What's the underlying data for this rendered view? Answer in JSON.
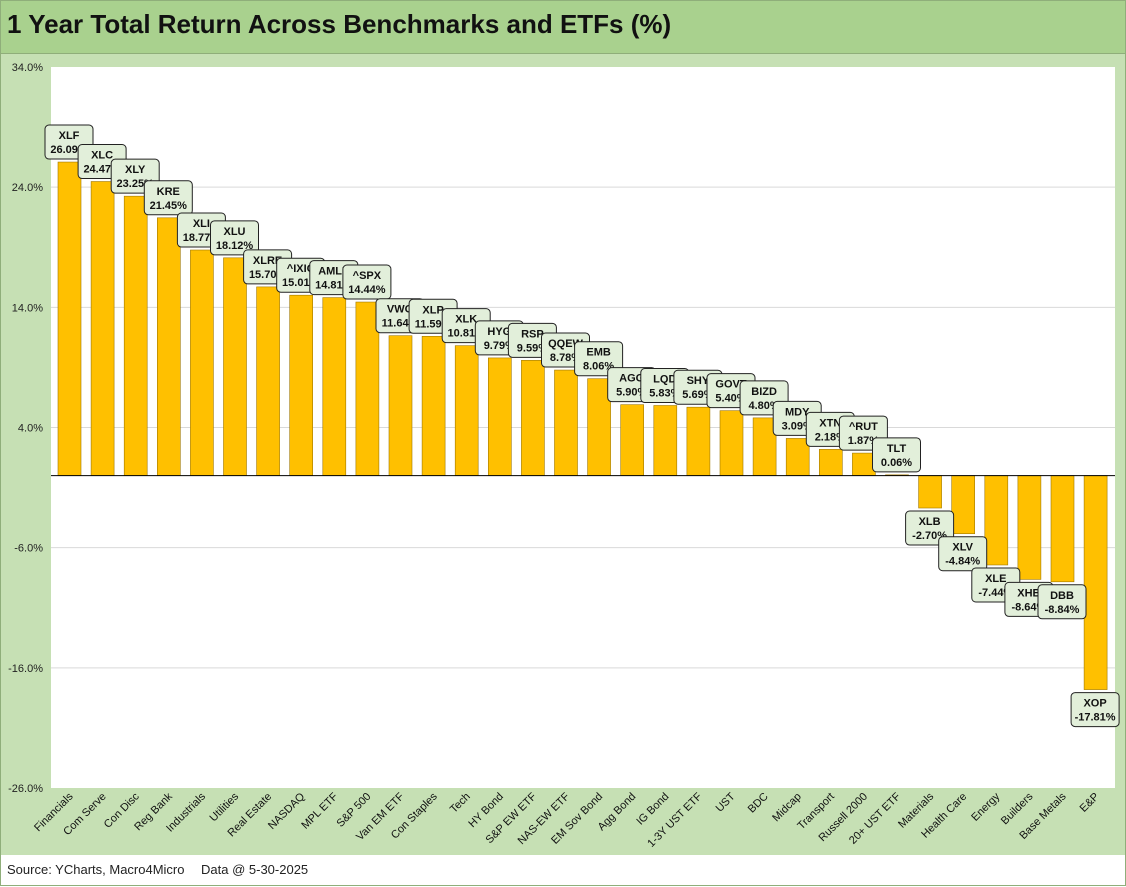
{
  "chart_data": {
    "type": "bar",
    "title": "1 Year Total Return Across Benchmarks and ETFs (%)",
    "xlabel": "",
    "ylabel": "",
    "ylim": [
      -26,
      34
    ],
    "yticks": [
      "34.0%",
      "24.0%",
      "14.0%",
      "4.0%",
      "-6.0%",
      "-16.0%",
      "-26.0%"
    ],
    "ytick_values": [
      34,
      24,
      14,
      4,
      -6,
      -16,
      -26
    ],
    "grid": true,
    "legend": "none",
    "categories": [
      "Financials",
      "Com Serve",
      "Con Disc",
      "Reg Bank",
      "Industrials",
      "Utilities",
      "Real Estate",
      "NASDAQ",
      "MPL ETF",
      "S&P 500",
      "Van EM ETF",
      "Con Staples",
      "Tech",
      "HY Bond",
      "S&P EW ETF",
      "NAS-EW ETF",
      "EM Sov Bond",
      "Agg Bond",
      "IG Bond",
      "1-3Y UST ETF",
      "UST",
      "BDC",
      "Midcap",
      "Transport",
      "Russell 2000",
      "20+ UST ETF",
      "Materials",
      "Health Care",
      "Energy",
      "Builders",
      "Base Metals",
      "E&P"
    ],
    "tickers": [
      "XLF",
      "XLC",
      "XLY",
      "KRE",
      "XLI",
      "XLU",
      "XLRE",
      "^IXIC",
      "AMLP",
      "^SPX",
      "VWO",
      "XLP",
      "XLK",
      "HYG",
      "RSP",
      "QQEW",
      "EMB",
      "AGG",
      "LQD",
      "SHY",
      "GOVT",
      "BIZD",
      "MDY",
      "XTN",
      "^RUT",
      "TLT",
      "XLB",
      "XLV",
      "XLE",
      "XHB",
      "DBB",
      "XOP"
    ],
    "value_labels": [
      "26.09%",
      "24.47%",
      "23.25%",
      "21.45%",
      "18.77%",
      "18.12%",
      "15.70%",
      "15.01%",
      "14.81%",
      "14.44%",
      "11.64%",
      "11.59%",
      "10.81%",
      "9.79%",
      "9.59%",
      "8.78%",
      "8.06%",
      "5.90%",
      "5.83%",
      "5.69%",
      "5.40%",
      "4.80%",
      "3.09%",
      "2.18%",
      "1.87%",
      "0.06%",
      "-2.70%",
      "-4.84%",
      "-7.44%",
      "-8.64%",
      "-8.84%",
      "-17.81%"
    ],
    "values": [
      26.09,
      24.47,
      23.25,
      21.45,
      18.77,
      18.12,
      15.7,
      15.01,
      14.81,
      14.44,
      11.64,
      11.59,
      10.81,
      9.79,
      9.59,
      8.78,
      8.06,
      5.9,
      5.83,
      5.69,
      5.4,
      4.8,
      3.09,
      2.18,
      1.87,
      0.06,
      -2.7,
      -4.84,
      -7.44,
      -8.64,
      -8.84,
      -17.81
    ]
  },
  "colors": {
    "bar": "#ffc000",
    "bar_stroke": "#a07800",
    "label_bg": "#e2efda",
    "frame_bg": "#c6e0b4",
    "title_bg": "#a9d18e",
    "grid": "#d9d9d9"
  },
  "footer": {
    "source": "Source: YCharts, Macro4Micro",
    "date": "Data @ 5-30-2025"
  }
}
